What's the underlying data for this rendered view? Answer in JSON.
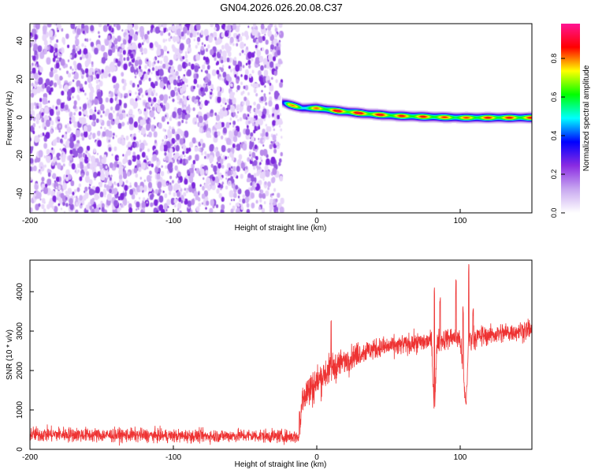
{
  "title": "GN04.2026.026.20.08.C37",
  "chart_data": [
    {
      "type": "heatmap",
      "xlabel": "Height of straight line (km)",
      "ylabel": "Frequency (Hz)",
      "xlim": [
        -200,
        150
      ],
      "ylim": [
        -50,
        49
      ],
      "x_ticks": [
        -200,
        -100,
        0,
        100
      ],
      "y_ticks": [
        -40,
        -20,
        0,
        20,
        40
      ],
      "colorbar": {
        "label": "Normalized spectral amplitude",
        "range": [
          0,
          0.98
        ],
        "ticks": [
          0.0,
          0.2,
          0.4,
          0.6,
          0.8
        ],
        "colors": [
          "#ffffff",
          "#c8a8f0",
          "#8a2be2",
          "#0000ff",
          "#00ffff",
          "#00ff00",
          "#ffff00",
          "#ff0000",
          "#ff1493"
        ]
      },
      "noise_region": {
        "x_range": [
          -200,
          -24
        ],
        "f_range": [
          -50,
          49
        ],
        "typical_amplitude": 0.1
      },
      "ridge": [
        {
          "x": -24,
          "f": 8,
          "amplitude": 0.5
        },
        {
          "x": -20,
          "f": 7,
          "amplitude": 0.9
        },
        {
          "x": -10,
          "f": 5,
          "amplitude": 0.7
        },
        {
          "x": 0,
          "f": 5,
          "amplitude": 0.85
        },
        {
          "x": 15,
          "f": 3.5,
          "amplitude": 0.95
        },
        {
          "x": 35,
          "f": 2,
          "amplitude": 0.95
        },
        {
          "x": 55,
          "f": 1,
          "amplitude": 0.9
        },
        {
          "x": 75,
          "f": 0.5,
          "amplitude": 0.9
        },
        {
          "x": 100,
          "f": 0,
          "amplitude": 0.85
        },
        {
          "x": 120,
          "f": 0,
          "amplitude": 0.9
        },
        {
          "x": 150,
          "f": 0,
          "amplitude": 0.9
        }
      ]
    },
    {
      "type": "line",
      "xlabel": "Height of straight line (km)",
      "ylabel": "SNR (10 * v/v)",
      "xlim": [
        -200,
        150
      ],
      "ylim": [
        0,
        4800
      ],
      "x_ticks": [
        -200,
        -100,
        0,
        100
      ],
      "y_ticks": [
        0,
        1000,
        2000,
        3000,
        4000
      ],
      "series": [
        {
          "color": "#ee3333",
          "x": [
            -200,
            -175,
            -150,
            -125,
            -100,
            -75,
            -50,
            -25,
            -12,
            -10,
            -5,
            0,
            5,
            10,
            15,
            20,
            30,
            40,
            50,
            60,
            70,
            80,
            82,
            84,
            90,
            95,
            100,
            104,
            106,
            110,
            120,
            130,
            140,
            150
          ],
          "values": [
            380,
            380,
            360,
            360,
            340,
            340,
            350,
            330,
            320,
            1400,
            1500,
            1700,
            1900,
            2050,
            2150,
            2250,
            2450,
            2550,
            2600,
            2650,
            2700,
            2750,
            900,
            2750,
            2800,
            2850,
            2800,
            1100,
            2800,
            2850,
            2900,
            2950,
            3000,
            3050
          ],
          "noise_amplitude": [
            250,
            250,
            230,
            230,
            220,
            220,
            220,
            220,
            220,
            600,
            650,
            600,
            550,
            500,
            450,
            420,
            380,
            350,
            330,
            330,
            330,
            350,
            300,
            400,
            350,
            350,
            400,
            300,
            500,
            350,
            330,
            330,
            330,
            330
          ],
          "spikes": [
            {
              "x": -12,
              "value": 1000
            },
            {
              "x": 10,
              "value": 3350
            },
            {
              "x": 82,
              "value": 4200
            },
            {
              "x": 86,
              "value": 3900
            },
            {
              "x": 97,
              "value": 4350
            },
            {
              "x": 102,
              "value": 3800
            },
            {
              "x": 106,
              "value": 4800
            },
            {
              "x": 109,
              "value": 3700
            }
          ]
        }
      ]
    }
  ]
}
